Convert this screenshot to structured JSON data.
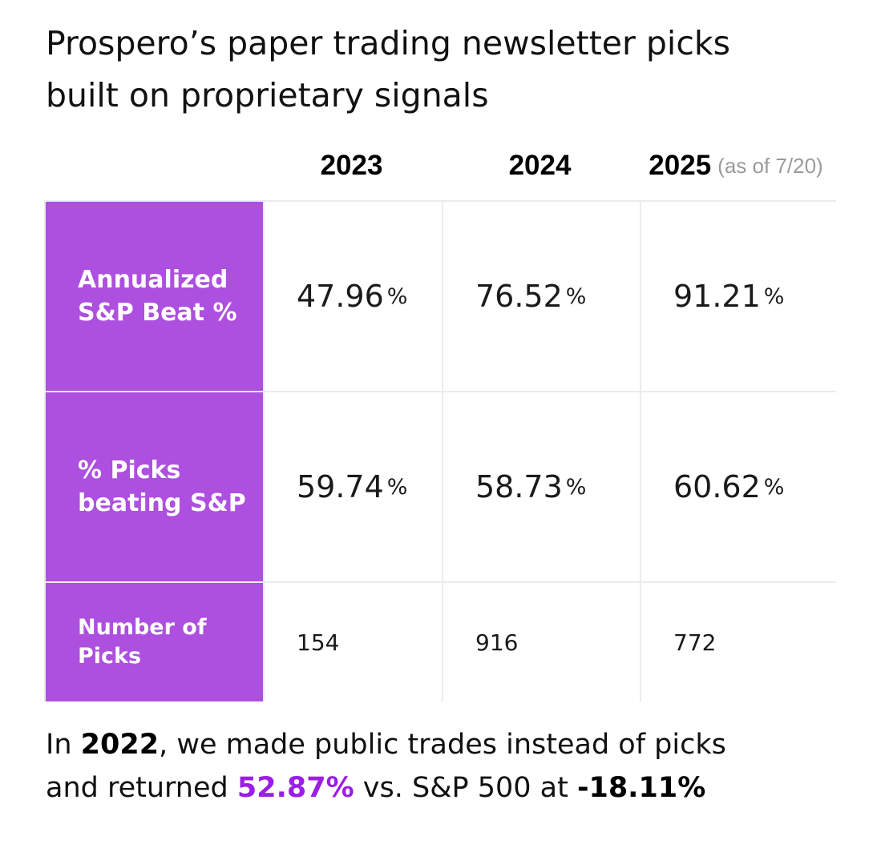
{
  "title": {
    "line1": "Prospero’s paper trading newsletter picks",
    "line2": "built on proprietary signals"
  },
  "columns": [
    {
      "year": "2023",
      "note": ""
    },
    {
      "year": "2024",
      "note": ""
    },
    {
      "year": "2025",
      "note": "(as of 7/20)"
    }
  ],
  "rows": [
    {
      "label_lines": [
        "Annualized",
        "S&P Beat %"
      ],
      "values": [
        "47.96",
        "76.52",
        "91.21"
      ],
      "unit": "%"
    },
    {
      "label_lines": [
        "% Picks",
        "beating S&P"
      ],
      "values": [
        "59.74",
        "58.73",
        "60.62"
      ],
      "unit": "%"
    },
    {
      "label_lines": [
        "Number of",
        "Picks"
      ],
      "values": [
        "154",
        "916",
        "772"
      ],
      "unit": ""
    }
  ],
  "footer": {
    "line1_prefix": "In ",
    "line1_year": "2022",
    "line1_suffix": ", we made public trades instead of picks",
    "line2_prefix": "and returned ",
    "line2_return": "52.87%",
    "line2_middle": " vs. S&P 500 at ",
    "line2_sp": "-18.11%"
  },
  "colors": {
    "label_background": "#ad4fdf",
    "accent": "#9b1de6",
    "grid_lines": "#ebebeb"
  }
}
